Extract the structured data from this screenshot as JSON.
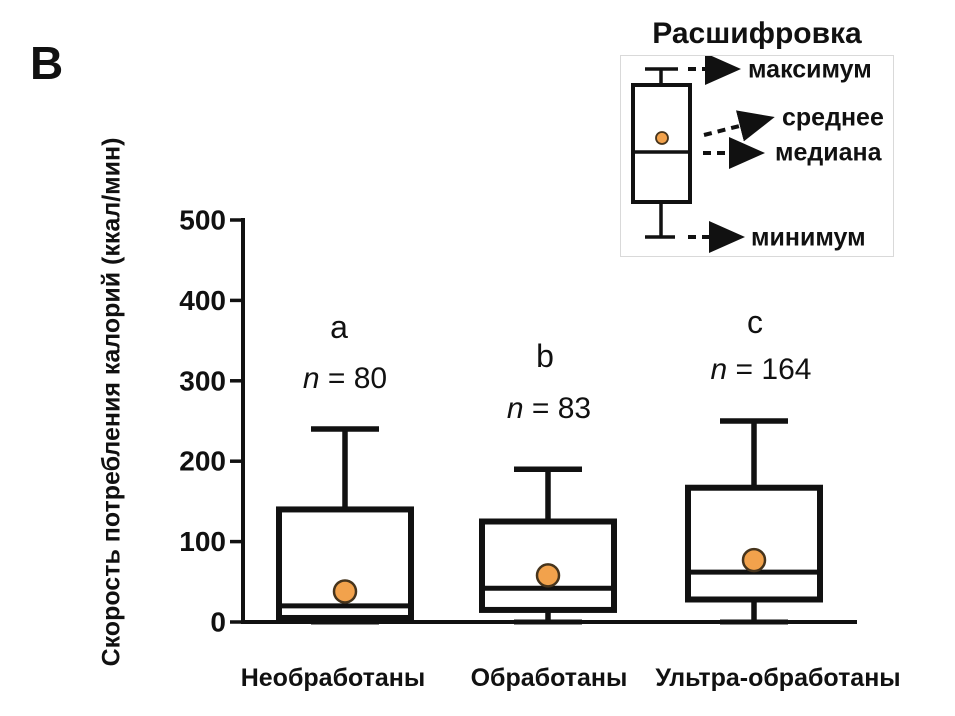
{
  "panel_label": "В",
  "y_axis": {
    "label": "Скорость потребления калорий (ккал/мин)",
    "ticks": [
      0,
      100,
      200,
      300,
      400,
      500
    ]
  },
  "legend": {
    "title": "Расшифровка",
    "items": [
      {
        "label": "максимум"
      },
      {
        "label": "среднее"
      },
      {
        "label": "медиана"
      },
      {
        "label": "минимум"
      }
    ]
  },
  "chart_data": {
    "type": "boxplot",
    "title": "",
    "ylabel": "Скорость потребления калорий (ккал/мин)",
    "xlabel": "",
    "ylim": [
      0,
      500
    ],
    "yticks": [
      0,
      100,
      200,
      300,
      400,
      500
    ],
    "grid": false,
    "legend_position": "top-right",
    "categories": [
      "Необработаны",
      "Обработаны",
      "Ультра-обработаны"
    ],
    "groups": [
      {
        "category": "Необработаны",
        "letter": "a",
        "n_label": "n = 80",
        "n": 80,
        "min": 0,
        "q1": 5,
        "median": 20,
        "mean": 38,
        "q3": 140,
        "max": 240
      },
      {
        "category": "Обработаны",
        "letter": "b",
        "n_label": "n = 83",
        "n": 83,
        "min": 0,
        "q1": 15,
        "median": 42,
        "mean": 58,
        "q3": 125,
        "max": 190
      },
      {
        "category": "Ультра-обработаны",
        "letter": "c",
        "n_label": "n = 164",
        "n": 164,
        "min": 0,
        "q1": 28,
        "median": 62,
        "mean": 77,
        "q3": 167,
        "max": 250
      }
    ],
    "colors": {
      "line": "#111111",
      "box_fill": "#ffffff",
      "mean_fill": "#F2A24C",
      "mean_stroke": "#46341c"
    }
  }
}
